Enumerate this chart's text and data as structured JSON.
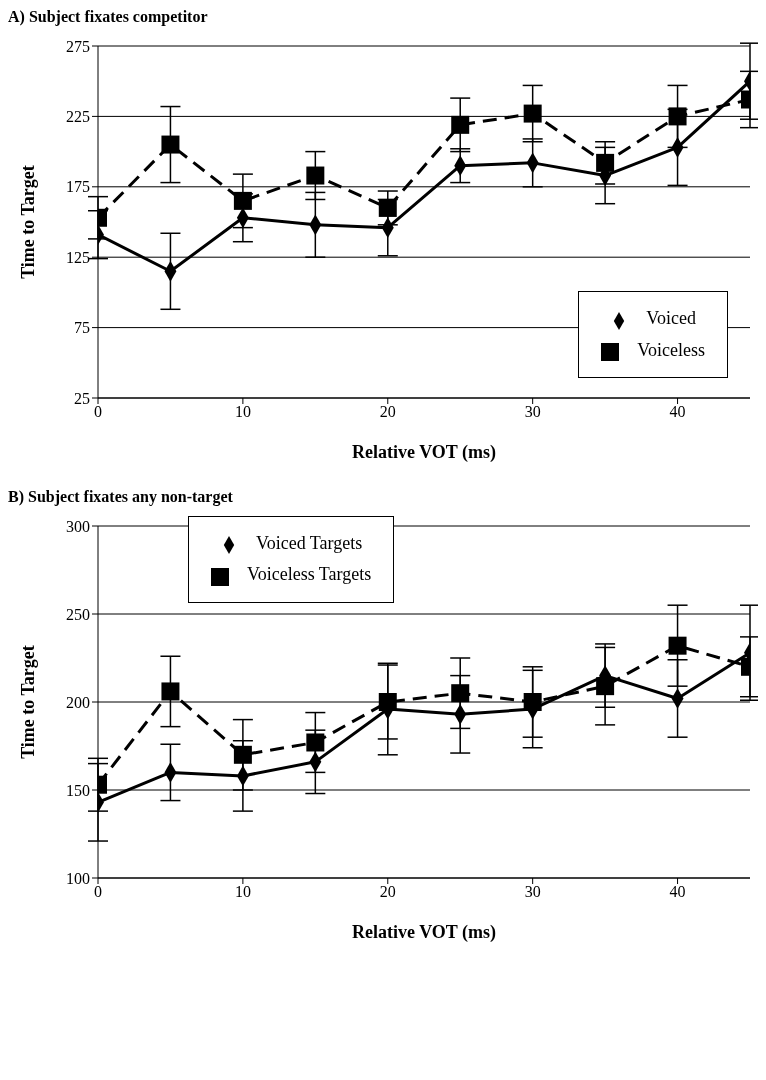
{
  "chart_data": [
    {
      "type": "line",
      "title": "A) Subject fixates competitor",
      "xlabel": "Relative VOT (ms)",
      "ylabel": "Time to Target",
      "x": [
        0,
        5,
        10,
        15,
        20,
        25,
        30,
        35,
        40,
        45
      ],
      "xlim": [
        0,
        45
      ],
      "xticks": [
        0,
        10,
        20,
        30,
        40
      ],
      "ylim": [
        25,
        275
      ],
      "yticks": [
        25,
        75,
        125,
        175,
        225,
        275
      ],
      "grid": "y",
      "legend": "bottom right",
      "series": [
        {
          "name": "Voiced",
          "color": "#000000",
          "marker": "diamond",
          "line_style": "solid",
          "values": [
            141,
            115,
            153,
            148,
            146,
            190,
            192,
            183,
            203,
            250
          ],
          "errors": [
            17,
            27,
            17,
            23,
            20,
            12,
            17,
            20,
            27,
            27
          ]
        },
        {
          "name": "Voiceless",
          "color": "#000000",
          "marker": "square",
          "line_style": "dashed",
          "values": [
            153,
            205,
            165,
            183,
            160,
            219,
            227,
            192,
            225,
            237
          ],
          "errors": [
            15,
            27,
            19,
            17,
            12,
            19,
            20,
            15,
            22,
            20
          ]
        }
      ]
    },
    {
      "type": "line",
      "title": "B) Subject fixates any non-target",
      "xlabel": "Relative VOT (ms)",
      "ylabel": "Time to Target",
      "x": [
        0,
        5,
        10,
        15,
        20,
        25,
        30,
        35,
        40,
        45
      ],
      "xlim": [
        0,
        45
      ],
      "xticks": [
        0,
        10,
        20,
        30,
        40
      ],
      "ylim": [
        100,
        300
      ],
      "yticks": [
        100,
        150,
        200,
        250,
        300
      ],
      "grid": "y",
      "legend": "top left",
      "series": [
        {
          "name": "Voiced Targets",
          "color": "#000000",
          "marker": "diamond",
          "line_style": "solid",
          "values": [
            143,
            160,
            158,
            166,
            196,
            193,
            196,
            215,
            202,
            228
          ],
          "errors": [
            22,
            16,
            20,
            18,
            26,
            22,
            22,
            18,
            22,
            27
          ]
        },
        {
          "name": "Voiceless Targets",
          "color": "#000000",
          "marker": "square",
          "line_style": "dashed",
          "values": [
            153,
            206,
            170,
            177,
            200,
            205,
            200,
            209,
            232,
            220
          ],
          "errors": [
            15,
            20,
            20,
            17,
            21,
            20,
            20,
            22,
            23,
            17
          ]
        }
      ]
    }
  ]
}
